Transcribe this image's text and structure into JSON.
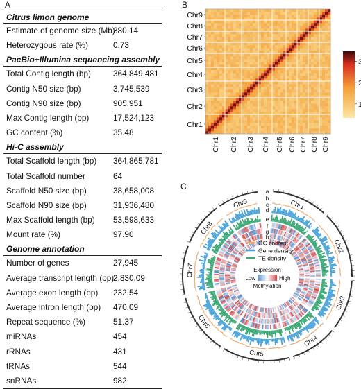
{
  "panels": {
    "a": "A",
    "b": "B",
    "c": "C"
  },
  "table": {
    "sections": [
      {
        "title": "Citrus limon genome",
        "rows": [
          {
            "key": "Estimate of genome size (Mb)",
            "value": "380.14"
          },
          {
            "key": "Heterozygous rate (%)",
            "value": "0.73"
          }
        ]
      },
      {
        "title": "PacBio+Illumina sequencing assembly",
        "rows": [
          {
            "key": "Total Contig length (bp)",
            "value": "364,849,481"
          },
          {
            "key": "Contig N50 size (bp)",
            "value": "3,745,539"
          },
          {
            "key": "Contig N90 size (bp)",
            "value": "905,951"
          },
          {
            "key": "Max Contig length (bp)",
            "value": "17,524,123"
          },
          {
            "key": "GC content (%)",
            "value": "35.48"
          }
        ]
      },
      {
        "title": "Hi-C assembly",
        "rows": [
          {
            "key": "Total Scaffold length (bp)",
            "value": "364,865,781"
          },
          {
            "key": "Total Scaffold number",
            "value": "64"
          },
          {
            "key": "Scaffold N50 size (bp)",
            "value": "38,658,008"
          },
          {
            "key": "Scaffold N90 size (bp)",
            "value": "31,936,480"
          },
          {
            "key": "Max Scaffold length (bp)",
            "value": "53,598,633"
          },
          {
            "key": "Mount rate (%)",
            "value": "97.90"
          }
        ]
      },
      {
        "title": "Genome annotation",
        "rows": [
          {
            "key": "Number of genes",
            "value": "27,945"
          },
          {
            "key": "Average transcript length (bp)",
            "value": "2,830.09"
          },
          {
            "key": "Average exon length (bp)",
            "value": "232.54"
          },
          {
            "key": "Average intron length (bp)",
            "value": "470.09"
          },
          {
            "key": "Repeat sequence (%)",
            "value": "51.37"
          },
          {
            "key": "miRNAs",
            "value": "454"
          },
          {
            "key": "rRNAs",
            "value": "431"
          },
          {
            "key": "tRNAs",
            "value": "544"
          },
          {
            "key": "snRNAs",
            "value": "982"
          }
        ]
      }
    ]
  },
  "heatmap": {
    "chromosomes": [
      "Chr1",
      "Chr2",
      "Chr3",
      "Chr4",
      "Chr5",
      "Chr6",
      "Chr7",
      "Chr8",
      "Chr9"
    ],
    "colorbar_ticks": [
      "3",
      "2",
      "1"
    ],
    "colors": {
      "low": "#fbe7a3",
      "mid": "#f4a03a",
      "high": "#d7301f",
      "top": "#3b0a0a"
    }
  },
  "circos": {
    "chromosomes": [
      "Chr1",
      "Chr2",
      "Chr3",
      "Chr4",
      "Chr5",
      "Chr6",
      "Chr7",
      "Chr8",
      "Chr9"
    ],
    "track_letters": [
      "a",
      "b",
      "c",
      "d",
      "e",
      "f",
      "g",
      "h"
    ],
    "legend": {
      "gc": "GC content",
      "gene": "Gene density",
      "te": "TE density",
      "expression": "Expression",
      "low": "Low",
      "high": "High",
      "methylation": "Methylation"
    },
    "colors": {
      "gc": "#f0a868",
      "gene": "#4aa3d8",
      "te": "#3aa775",
      "low": "#5b8fc9",
      "high": "#d24b4b"
    }
  }
}
